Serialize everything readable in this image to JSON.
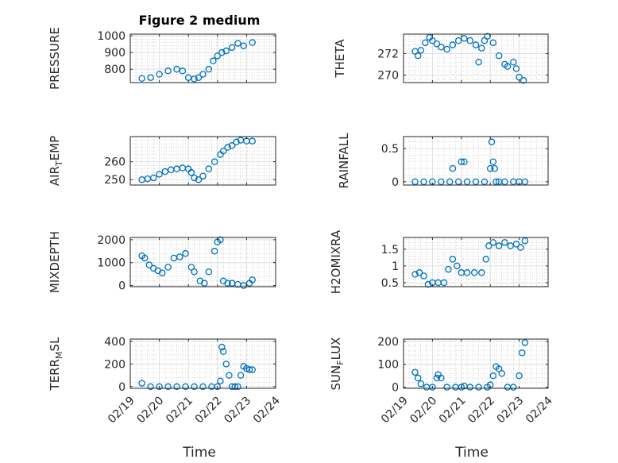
{
  "figure_title": "Figure 2 medium",
  "colors": {
    "marker": "#0072BD",
    "axis": "#262626",
    "grid": "#dfdfdf",
    "minor_grid": "#bdbdbd"
  },
  "x_axis": {
    "label": "Time",
    "tick_labels": [
      "02/19",
      "02/20",
      "02/21",
      "02/22",
      "02/23",
      "02/24"
    ],
    "range_days": [
      0,
      5
    ]
  },
  "chart_data": [
    {
      "type": "scatter",
      "id": "pressure",
      "ylabel": "PRESSURE",
      "ylabel_parts": [
        "PRESSURE"
      ],
      "ylim": [
        720,
        1010
      ],
      "yticks": [
        800,
        900,
        1000
      ],
      "yticklabels": [
        "800",
        "900",
        "1000"
      ],
      "x": [
        0.4,
        0.7,
        1.0,
        1.3,
        1.6,
        1.8,
        2.0,
        2.2,
        2.35,
        2.5,
        2.7,
        2.85,
        3.0,
        3.15,
        3.3,
        3.5,
        3.7,
        3.9,
        4.2
      ],
      "values": [
        745,
        750,
        770,
        790,
        800,
        790,
        750,
        742,
        750,
        770,
        800,
        850,
        880,
        900,
        910,
        930,
        955,
        940,
        960
      ]
    },
    {
      "type": "scatter",
      "id": "theta",
      "ylabel": "THETA",
      "ylabel_parts": [
        "THETA"
      ],
      "ylim": [
        269.3,
        273.8
      ],
      "yticks": [
        270,
        272
      ],
      "yticklabels": [
        "270",
        "272"
      ],
      "x": [
        0.4,
        0.5,
        0.6,
        0.75,
        0.9,
        1.0,
        1.15,
        1.3,
        1.5,
        1.7,
        1.9,
        2.1,
        2.3,
        2.5,
        2.6,
        2.7,
        2.8,
        2.9,
        3.1,
        3.3,
        3.5,
        3.6,
        3.8,
        3.9,
        4.0,
        4.15
      ],
      "values": [
        272.2,
        271.8,
        272.3,
        273.0,
        273.5,
        273.2,
        272.9,
        272.6,
        272.4,
        272.8,
        273.2,
        273.4,
        273.2,
        272.8,
        271.2,
        272.5,
        273.2,
        273.6,
        273.0,
        271.8,
        271.0,
        270.8,
        271.2,
        270.6,
        269.8,
        269.5
      ]
    },
    {
      "type": "scatter",
      "id": "air_temp",
      "ylabel": "AIR_TEMP",
      "ylabel_parts": [
        "AIR",
        "T",
        "EMP"
      ],
      "ylim": [
        247,
        274
      ],
      "yticks": [
        250,
        260
      ],
      "yticklabels": [
        "250",
        "260"
      ],
      "x": [
        0.4,
        0.6,
        0.8,
        1.0,
        1.2,
        1.4,
        1.6,
        1.8,
        2.0,
        2.1,
        2.2,
        2.35,
        2.5,
        2.7,
        2.9,
        3.1,
        3.2,
        3.35,
        3.5,
        3.65,
        3.8,
        4.0,
        4.2
      ],
      "values": [
        250,
        250.5,
        251,
        253,
        254.5,
        255.5,
        256,
        256.5,
        256,
        254,
        251,
        250,
        252,
        256,
        260,
        264,
        266,
        268,
        269,
        271,
        272,
        271.5,
        271.5
      ]
    },
    {
      "type": "scatter",
      "id": "rainfall",
      "ylabel": "RAINFALL",
      "ylabel_parts": [
        "RAINFALL"
      ],
      "ylim": [
        -0.05,
        0.68
      ],
      "yticks": [
        0,
        0.5
      ],
      "yticklabels": [
        "0",
        "0.5"
      ],
      "x": [
        0.4,
        0.7,
        1.0,
        1.3,
        1.6,
        1.7,
        1.9,
        2.0,
        2.1,
        2.2,
        2.5,
        2.8,
        3.0,
        3.05,
        3.1,
        3.15,
        3.2,
        3.3,
        3.5,
        3.8,
        4.0,
        4.2
      ],
      "values": [
        0,
        0,
        0,
        0,
        0,
        0.2,
        0,
        0.3,
        0.3,
        0,
        0,
        0,
        0.2,
        0.6,
        0.3,
        0.2,
        0,
        0,
        0,
        0,
        0,
        0
      ]
    },
    {
      "type": "scatter",
      "id": "mixdepth",
      "ylabel": "MIXDEPTH",
      "ylabel_parts": [
        "MIXDEPTH"
      ],
      "ylim": [
        -50,
        2100
      ],
      "yticks": [
        0,
        1000,
        2000
      ],
      "yticklabels": [
        "0",
        "1000",
        "2000"
      ],
      "x": [
        0.4,
        0.5,
        0.65,
        0.8,
        0.95,
        1.1,
        1.3,
        1.5,
        1.7,
        1.9,
        2.1,
        2.2,
        2.4,
        2.55,
        2.7,
        2.9,
        3.0,
        3.1,
        3.2,
        3.35,
        3.5,
        3.7,
        3.9,
        4.1,
        4.2
      ],
      "values": [
        1300,
        1200,
        900,
        750,
        650,
        550,
        800,
        1200,
        1250,
        1400,
        800,
        600,
        200,
        100,
        600,
        1500,
        1900,
        2000,
        200,
        100,
        100,
        50,
        0,
        100,
        250
      ]
    },
    {
      "type": "scatter",
      "id": "h2omixra",
      "ylabel": "H2OMIXRA",
      "ylabel_parts": [
        "H2OMIXRA"
      ],
      "ylim": [
        0.38,
        1.85
      ],
      "yticks": [
        0.5,
        1,
        1.5
      ],
      "yticklabels": [
        "0.5",
        "1",
        "1.5"
      ],
      "x": [
        0.4,
        0.55,
        0.7,
        0.85,
        1.0,
        1.2,
        1.4,
        1.55,
        1.7,
        1.85,
        2.0,
        2.2,
        2.45,
        2.7,
        2.85,
        2.95,
        3.1,
        3.3,
        3.5,
        3.7,
        3.9,
        4.05,
        4.2
      ],
      "values": [
        0.75,
        0.8,
        0.7,
        0.45,
        0.5,
        0.5,
        0.5,
        0.9,
        1.2,
        1.0,
        0.8,
        0.8,
        0.8,
        0.8,
        1.2,
        1.6,
        1.7,
        1.6,
        1.7,
        1.6,
        1.65,
        1.55,
        1.75
      ]
    },
    {
      "type": "scatter",
      "id": "terr_msl",
      "ylabel": "TERR_MSL",
      "ylabel_parts": [
        "TERR",
        "M",
        "SL"
      ],
      "ylim": [
        -15,
        420
      ],
      "yticks": [
        0,
        200,
        400
      ],
      "yticklabels": [
        "0",
        "200",
        "400"
      ],
      "x": [
        0.4,
        0.7,
        1.0,
        1.3,
        1.6,
        1.9,
        2.2,
        2.5,
        2.8,
        3.0,
        3.1,
        3.15,
        3.2,
        3.3,
        3.4,
        3.5,
        3.6,
        3.7,
        3.8,
        3.9,
        4.0,
        4.1,
        4.2
      ],
      "values": [
        30,
        0,
        0,
        0,
        0,
        0,
        0,
        0,
        0,
        0,
        50,
        350,
        310,
        200,
        100,
        0,
        0,
        0,
        100,
        180,
        160,
        150,
        150
      ]
    },
    {
      "type": "scatter",
      "id": "sun_flux",
      "ylabel": "SUN_FLUX",
      "ylabel_parts": [
        "SUN",
        "F",
        "LUX"
      ],
      "ylim": [
        -5,
        210
      ],
      "yticks": [
        0,
        100,
        200
      ],
      "yticklabels": [
        "0",
        "100",
        "200"
      ],
      "x": [
        0.4,
        0.5,
        0.6,
        0.8,
        1.0,
        1.15,
        1.2,
        1.3,
        1.5,
        1.8,
        2.0,
        2.1,
        2.3,
        2.6,
        2.9,
        3.0,
        3.1,
        3.2,
        3.3,
        3.4,
        3.6,
        3.8,
        4.0,
        4.1,
        4.2
      ],
      "values": [
        65,
        40,
        15,
        0,
        0,
        40,
        55,
        40,
        0,
        0,
        0,
        5,
        0,
        0,
        0,
        10,
        50,
        90,
        80,
        60,
        0,
        0,
        50,
        150,
        195
      ]
    }
  ]
}
